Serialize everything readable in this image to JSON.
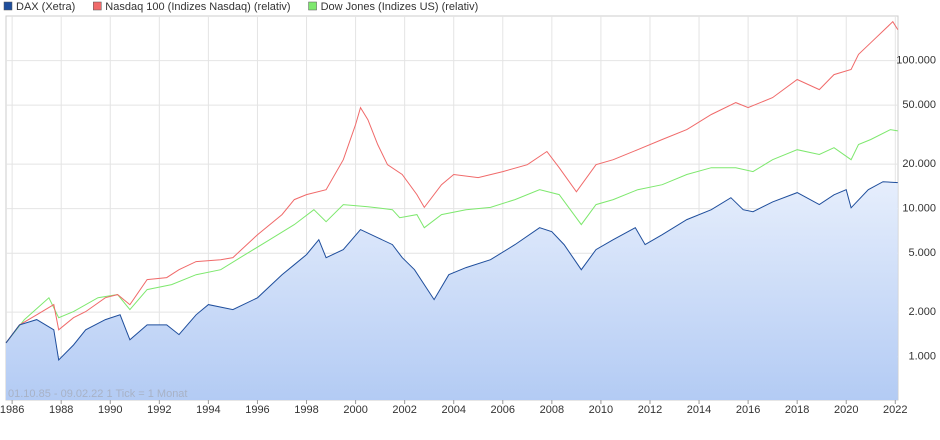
{
  "chart_data": {
    "type": "line",
    "log_scale": true,
    "grid": true,
    "legend": "top-left",
    "note": "01.10.85 - 09.02.22   1 Tick = 1 Monat",
    "xlim": [
      1985.75,
      2022.11
    ],
    "ylim": [
      510,
      200000
    ],
    "xticks": [
      1986,
      1988,
      1990,
      1992,
      1994,
      1996,
      1998,
      2000,
      2002,
      2004,
      2006,
      2008,
      2010,
      2012,
      2014,
      2016,
      2018,
      2020,
      2022
    ],
    "yticks": [
      {
        "value": 1000,
        "label": "1.000"
      },
      {
        "value": 2000,
        "label": "2.000"
      },
      {
        "value": 5000,
        "label": "5.000"
      },
      {
        "value": 10000,
        "label": "10.000"
      },
      {
        "value": 20000,
        "label": "20.000"
      },
      {
        "value": 50000,
        "label": "50.000"
      },
      {
        "value": 100000,
        "label": "100.000"
      }
    ],
    "series": [
      {
        "name": "DAX (Xetra)",
        "color": "#1f4e9c",
        "area": true,
        "x": [
          1985.75,
          1986.3,
          1987.0,
          1987.7,
          1987.9,
          1988.5,
          1989.0,
          1989.8,
          1990.4,
          1990.8,
          1991.5,
          1992.3,
          1992.8,
          1993.5,
          1994.0,
          1995.0,
          1996.0,
          1997.0,
          1997.5,
          1998.0,
          1998.5,
          1998.8,
          1999.5,
          2000.2,
          2000.9,
          2001.5,
          2001.9,
          2002.4,
          2003.2,
          2003.8,
          2004.5,
          2005.5,
          2006.5,
          2007.5,
          2008.0,
          2008.5,
          2009.2,
          2009.8,
          2010.5,
          2011.4,
          2011.8,
          2012.5,
          2013.5,
          2014.5,
          2015.3,
          2015.8,
          2016.2,
          2017.0,
          2018.0,
          2018.9,
          2019.5,
          2020.0,
          2020.2,
          2020.9,
          2021.5,
          2022.1
        ],
        "values": [
          1240,
          1640,
          1780,
          1520,
          950,
          1200,
          1520,
          1780,
          1920,
          1300,
          1640,
          1640,
          1410,
          1920,
          2250,
          2080,
          2500,
          3580,
          4180,
          4890,
          6170,
          4660,
          5290,
          7220,
          6360,
          5720,
          4670,
          3870,
          2430,
          3580,
          4000,
          4520,
          5720,
          7440,
          6990,
          5720,
          3870,
          5290,
          6170,
          7440,
          5720,
          6670,
          8430,
          9840,
          11860,
          9840,
          9530,
          11100,
          12830,
          10640,
          12400,
          13430,
          10130,
          13430,
          15200,
          15000
        ]
      },
      {
        "name": "Nasdaq 100 (Indizes Nasdaq) (relativ)",
        "color": "#f06a6a",
        "x": [
          1985.75,
          1986.3,
          1987.0,
          1987.7,
          1987.9,
          1988.5,
          1989.0,
          1989.8,
          1990.3,
          1990.8,
          1991.5,
          1992.3,
          1992.8,
          1993.5,
          1994.5,
          1995.0,
          1996.0,
          1997.0,
          1997.5,
          1998.0,
          1998.8,
          1999.5,
          2000.0,
          2000.2,
          2000.5,
          2000.9,
          2001.3,
          2001.9,
          2002.5,
          2002.8,
          2003.5,
          2004.0,
          2005.0,
          2006.0,
          2007.0,
          2007.8,
          2008.3,
          2009.0,
          2009.8,
          2010.5,
          2011.5,
          2012.5,
          2013.5,
          2014.5,
          2015.5,
          2016.0,
          2017.0,
          2018.0,
          2018.9,
          2019.5,
          2020.2,
          2020.5,
          2021.0,
          2021.9,
          2022.1
        ],
        "values": [
          1240,
          1640,
          1920,
          2250,
          1520,
          1835,
          2015,
          2505,
          2625,
          2245,
          3315,
          3420,
          3870,
          4385,
          4520,
          4670,
          6670,
          9110,
          11500,
          12440,
          13430,
          21400,
          37000,
          48100,
          39900,
          27100,
          19800,
          17000,
          12440,
          10200,
          14500,
          17000,
          16200,
          17800,
          19800,
          24300,
          18900,
          13000,
          19800,
          21400,
          25000,
          29300,
          34200,
          43200,
          52000,
          48100,
          56200,
          74500,
          63700,
          80400,
          87000,
          110000,
          132000,
          183000,
          162000
        ]
      },
      {
        "name": "Dow Jones (Indizes US) (relativ)",
        "color": "#7ee86e",
        "x": [
          1985.75,
          1986.5,
          1987.5,
          1987.9,
          1988.5,
          1989.5,
          1990.3,
          1990.8,
          1991.5,
          1992.5,
          1993.5,
          1994.5,
          1995.5,
          1996.5,
          1997.5,
          1998.3,
          1998.8,
          1999.5,
          2000.5,
          2001.5,
          2001.8,
          2002.5,
          2002.8,
          2003.5,
          2004.5,
          2005.5,
          2006.5,
          2007.5,
          2008.3,
          2009.2,
          2009.8,
          2010.5,
          2011.5,
          2012.5,
          2013.5,
          2014.5,
          2015.5,
          2016.2,
          2017.0,
          2018.0,
          2018.9,
          2019.5,
          2020.2,
          2020.5,
          2021.0,
          2021.8,
          2022.1
        ],
        "values": [
          1240,
          1780,
          2500,
          1835,
          2015,
          2505,
          2625,
          2080,
          2840,
          3070,
          3580,
          3870,
          4890,
          6170,
          7800,
          9840,
          8160,
          10640,
          10300,
          9840,
          8690,
          9110,
          7440,
          9110,
          9840,
          10200,
          11500,
          13430,
          12440,
          7800,
          10640,
          11500,
          13430,
          14500,
          17000,
          18900,
          18900,
          17800,
          21400,
          25000,
          23200,
          25800,
          21400,
          27100,
          29300,
          34200,
          33500
        ]
      }
    ]
  }
}
